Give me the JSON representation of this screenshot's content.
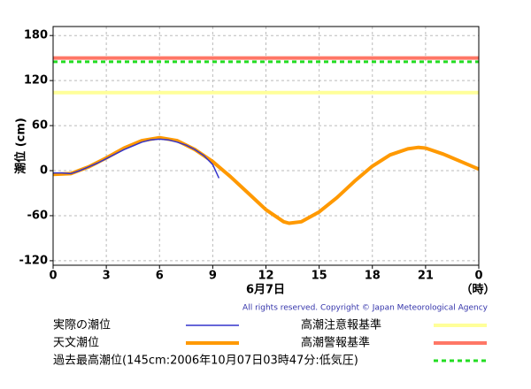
{
  "chart_data": {
    "type": "line",
    "ylabel": "潮位 (cm)",
    "xlabel": "6月7日",
    "xunit": "（時）",
    "copyright": "All rights reserved. Copyright © Japan Meteorological Agency",
    "xlim": [
      0,
      24
    ],
    "xticks": [
      0,
      3,
      6,
      9,
      12,
      15,
      18,
      21,
      {
        "value": 24,
        "label": "0"
      }
    ],
    "ylim": [
      -126,
      192
    ],
    "yticks": [
      -120,
      -60,
      0,
      60,
      120,
      180
    ],
    "grid": true,
    "series": [
      {
        "name": "天文潮位",
        "color": "#ff9900",
        "x": [
          0,
          1,
          2,
          3,
          4,
          5,
          6,
          7,
          8,
          9,
          10,
          11,
          12,
          13,
          13.3,
          14,
          15,
          16,
          17,
          18,
          19,
          20,
          20.6,
          21,
          22,
          23,
          24
        ],
        "values": [
          -5,
          -4,
          5,
          17,
          30,
          40,
          44,
          40,
          28,
          12,
          -8,
          -30,
          -52,
          -68,
          -70,
          -68,
          -55,
          -36,
          -14,
          6,
          21,
          29,
          31,
          30,
          22,
          12,
          2
        ]
      },
      {
        "name": "実際の潮位",
        "color": "#3333cc",
        "x": [
          0,
          0.5,
          1,
          1.5,
          2,
          2.5,
          3,
          3.5,
          4,
          4.5,
          5,
          5.5,
          6,
          6.5,
          7,
          7.5,
          8,
          8.5,
          9,
          9.35
        ],
        "values": [
          -3,
          -3,
          -4,
          0,
          5,
          10,
          16,
          22,
          28,
          33,
          38,
          41,
          42,
          41,
          38,
          34,
          28,
          20,
          8,
          -10
        ]
      }
    ],
    "reference_lines": [
      {
        "name": "高潮注意報基準",
        "color": "#ffff99",
        "value": 104
      },
      {
        "name": "高潮警報基準",
        "color": "#ff7766",
        "value": 150
      },
      {
        "name": "過去最高潮位(145cm:2006年10月07日03時47分:低気圧)",
        "color": "#22dd22",
        "value": 145,
        "dashed": true
      }
    ]
  }
}
